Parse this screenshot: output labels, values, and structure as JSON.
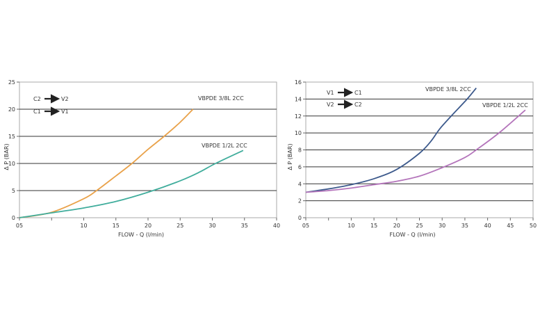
{
  "chart_data": [
    {
      "type": "line",
      "xlabel": "FLOW - Q (l/min)",
      "ylabel": "Δ P (BAR)",
      "xlim": [
        0,
        40
      ],
      "ylim": [
        0,
        25
      ],
      "x_ticks": [
        0,
        5,
        10,
        15,
        20,
        25,
        30,
        35,
        40
      ],
      "x_tick_labels": [
        "05",
        "",
        "10",
        "15",
        "20",
        "25",
        "30",
        "35",
        "40"
      ],
      "y_ticks": [
        0,
        5,
        10,
        15,
        20,
        25
      ],
      "y_tick_labels": [
        "0",
        "5",
        "10",
        "15",
        "20",
        "25"
      ],
      "grid": "horizontal",
      "flow_labels": [
        {
          "from": "C2",
          "to": "V2"
        },
        {
          "from": "C1",
          "to": "V1"
        }
      ],
      "series": [
        {
          "name": "VBPDE 3/8L 2CC",
          "color": "#e9a24a",
          "x": [
            0,
            5,
            10,
            12,
            15,
            17.5,
            20,
            22.5,
            25,
            27
          ],
          "y": [
            0,
            1,
            3.5,
            5,
            7.7,
            10,
            12.6,
            15,
            17.6,
            20
          ]
        },
        {
          "name": "VBPDE 1/2L 2CC",
          "color": "#40ad9c",
          "x": [
            0,
            5,
            10,
            15,
            20,
            25,
            28,
            30.5,
            34.8
          ],
          "y": [
            0,
            0.9,
            1.8,
            3,
            4.7,
            6.8,
            8.4,
            10,
            12.4
          ]
        }
      ]
    },
    {
      "type": "line",
      "xlabel": "FLOW - Q (l/min)",
      "ylabel": "Δ P (BAR)",
      "xlim": [
        0,
        50
      ],
      "ylim": [
        0,
        16
      ],
      "x_ticks": [
        0,
        5,
        10,
        15,
        20,
        25,
        30,
        35,
        40,
        45,
        50
      ],
      "x_tick_labels": [
        "05",
        "",
        "10",
        "15",
        "20",
        "25",
        "30",
        "35",
        "40",
        "45",
        "50"
      ],
      "y_ticks": [
        0,
        2,
        4,
        6,
        8,
        10,
        12,
        14,
        16
      ],
      "y_tick_labels": [
        "0",
        "2",
        "4",
        "6",
        "8",
        "10",
        "12",
        "14",
        "16"
      ],
      "grid": "horizontal",
      "flow_labels": [
        {
          "from": "V1",
          "to": "C1"
        },
        {
          "from": "V2",
          "to": "C2"
        }
      ],
      "series": [
        {
          "name": "VBPDE 3/8L 2CC",
          "color": "#3d5a8c",
          "x": [
            0,
            5,
            10,
            15,
            20,
            25,
            27.5,
            29.5,
            32,
            35.5,
            37.5
          ],
          "y": [
            3,
            3.4,
            3.9,
            4.6,
            5.7,
            7.6,
            9,
            10.5,
            12,
            14,
            15.3
          ]
        },
        {
          "name": "VBPDE 1/2L 2CC",
          "color": "#b475bb",
          "x": [
            0,
            5,
            10,
            15,
            20,
            25,
            30,
            35,
            37.5,
            42.5,
            48.3
          ],
          "y": [
            3,
            3.2,
            3.5,
            3.9,
            4.3,
            4.9,
            5.9,
            7.1,
            8,
            10,
            12.7
          ]
        }
      ]
    }
  ]
}
